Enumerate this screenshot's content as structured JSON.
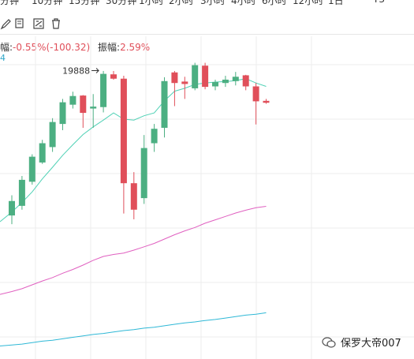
{
  "topbar": {
    "items": [
      "分钟",
      "10分钟",
      "15分钟",
      "30分钟",
      "1小时",
      "2小时",
      "3小时",
      "4小时",
      "6小时",
      "12小时",
      "1日"
    ],
    "right_label": "T3"
  },
  "toolbar": {
    "icons": [
      "draw-icon",
      "copy-icon",
      "settings-icon",
      "delete-icon"
    ]
  },
  "stats": {
    "change_label": "幅:",
    "change_value": "-0.55%(-100.32)",
    "amplitude_label": "振幅:",
    "amplitude_value": "2.59%"
  },
  "left_cut_label": "4",
  "chart_data": {
    "type": "candlestick",
    "annotation": {
      "text": "19888",
      "value": 19888
    },
    "colors": {
      "up": "#4caf82",
      "down": "#e04f5a",
      "ma_short": "#4fd1b5",
      "ma_mid": "#e060c0",
      "ma_long": "#2fb8d6",
      "grid": "#ececec"
    },
    "candles": [
      {
        "o": 16880,
        "h": 17300,
        "l": 16700,
        "c": 17180
      },
      {
        "o": 17080,
        "h": 17700,
        "l": 17000,
        "c": 17620
      },
      {
        "o": 17580,
        "h": 18150,
        "l": 17520,
        "c": 18100
      },
      {
        "o": 17980,
        "h": 18450,
        "l": 17950,
        "c": 18380
      },
      {
        "o": 18300,
        "h": 18900,
        "l": 18200,
        "c": 18820
      },
      {
        "o": 18780,
        "h": 19300,
        "l": 18650,
        "c": 19230
      },
      {
        "o": 19180,
        "h": 19450,
        "l": 19100,
        "c": 19360
      },
      {
        "o": 19370,
        "h": 19380,
        "l": 18700,
        "c": 19010
      },
      {
        "o": 19100,
        "h": 19400,
        "l": 18700,
        "c": 19140
      },
      {
        "o": 19130,
        "h": 19880,
        "l": 19020,
        "c": 19820
      },
      {
        "o": 19810,
        "h": 19880,
        "l": 19700,
        "c": 19720
      },
      {
        "o": 19720,
        "h": 19780,
        "l": 16920,
        "c": 17550
      },
      {
        "o": 17550,
        "h": 17780,
        "l": 16800,
        "c": 17000
      },
      {
        "o": 17240,
        "h": 18550,
        "l": 17120,
        "c": 18280
      },
      {
        "o": 18380,
        "h": 18780,
        "l": 18200,
        "c": 18680
      },
      {
        "o": 18700,
        "h": 19750,
        "l": 18500,
        "c": 19670
      },
      {
        "o": 19850,
        "h": 19880,
        "l": 19150,
        "c": 19630
      },
      {
        "o": 19660,
        "h": 19760,
        "l": 19300,
        "c": 19610
      },
      {
        "o": 19520,
        "h": 20050,
        "l": 19480,
        "c": 20000
      },
      {
        "o": 19990,
        "h": 20050,
        "l": 19500,
        "c": 19550
      },
      {
        "o": 19560,
        "h": 19700,
        "l": 19480,
        "c": 19650
      },
      {
        "o": 19630,
        "h": 19780,
        "l": 19550,
        "c": 19700
      },
      {
        "o": 19670,
        "h": 19860,
        "l": 19580,
        "c": 19760
      },
      {
        "o": 19790,
        "h": 19800,
        "l": 19480,
        "c": 19560
      },
      {
        "o": 19560,
        "h": 19630,
        "l": 18770,
        "c": 19250
      },
      {
        "o": 19260,
        "h": 19300,
        "l": 19200,
        "c": 19220
      }
    ],
    "ma_short": [
      16950,
      17150,
      17370,
      17640,
      17880,
      18130,
      18350,
      18560,
      18720,
      18860,
      19010,
      18880,
      18860,
      18950,
      19010,
      19260,
      19460,
      19520,
      19600,
      19630,
      19650,
      19660,
      19680,
      19720,
      19630,
      19560
    ],
    "ma_mid": [
      15300,
      15360,
      15440,
      15520,
      15590,
      15680,
      15760,
      15850,
      15950,
      16030,
      16070,
      16100,
      16160,
      16230,
      16300,
      16390,
      16480,
      16560,
      16630,
      16720,
      16790,
      16860,
      16930,
      16990,
      17040,
      17070
    ],
    "ma_long": [
      14190,
      14210,
      14240,
      14270,
      14290,
      14320,
      14350,
      14380,
      14410,
      14430,
      14460,
      14490,
      14510,
      14540,
      14560,
      14590,
      14620,
      14650,
      14670,
      14700,
      14720,
      14750,
      14780,
      14810,
      14830,
      14860
    ],
    "ylim": [
      13900,
      20600
    ],
    "grid": true
  },
  "watermark": {
    "text": "保罗大帝007"
  }
}
